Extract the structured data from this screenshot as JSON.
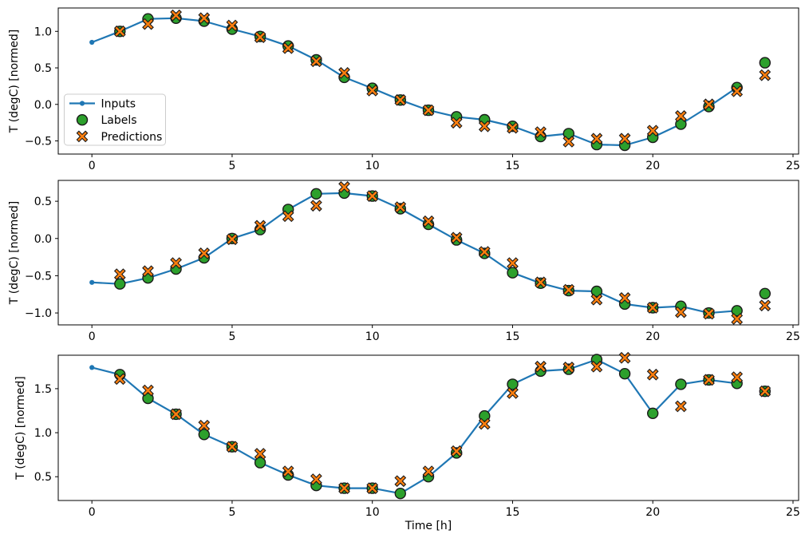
{
  "figure": {
    "xlabel": "Time [h]",
    "ylabel": "T (degC) [normed]",
    "legend": {
      "location": "lower-left of first subplot",
      "items": [
        {
          "label": "Inputs",
          "marker": "line-with-dot",
          "color": "#1f77b4"
        },
        {
          "label": "Labels",
          "marker": "circle",
          "color": "#2ca02c",
          "edge_color": "#1a1a1a"
        },
        {
          "label": "Predictions",
          "marker": "x",
          "color": "#ff7f0e",
          "edge_color": "#1a1a1a"
        }
      ]
    }
  },
  "chart_data": [
    {
      "type": "line",
      "title": "",
      "xlabel": "",
      "ylabel": "T (degC) [normed]",
      "xlim": [
        -1.2,
        25.2
      ],
      "ylim": [
        -0.68,
        1.32
      ],
      "xticks": [
        0,
        5,
        10,
        15,
        20,
        25
      ],
      "xticklabels": [
        "0",
        "5",
        "10",
        "15",
        "20",
        "25"
      ],
      "yticks": [
        -0.5,
        0.0,
        0.5,
        1.0
      ],
      "yticklabels": [
        "−0.5",
        "0.0",
        "0.5",
        "1.0"
      ],
      "grid": false,
      "legend": true,
      "series": [
        {
          "name": "Inputs",
          "style": "line-with-dot",
          "color": "#1f77b4",
          "x": [
            0,
            1,
            2,
            3,
            4,
            5,
            6,
            7,
            8,
            9,
            10,
            11,
            12,
            13,
            14,
            15,
            16,
            17,
            18,
            19,
            20,
            21,
            22,
            23
          ],
          "y": [
            0.85,
            1.0,
            1.17,
            1.18,
            1.14,
            1.03,
            0.93,
            0.8,
            0.61,
            0.37,
            0.22,
            0.06,
            -0.08,
            -0.17,
            -0.21,
            -0.3,
            -0.44,
            -0.4,
            -0.55,
            -0.56,
            -0.45,
            -0.27,
            -0.03,
            0.23
          ]
        },
        {
          "name": "Labels",
          "style": "circle",
          "color": "#2ca02c",
          "x": [
            1,
            2,
            3,
            4,
            5,
            6,
            7,
            8,
            9,
            10,
            11,
            12,
            13,
            14,
            15,
            16,
            17,
            18,
            19,
            20,
            21,
            22,
            23,
            24
          ],
          "y": [
            1.0,
            1.17,
            1.18,
            1.14,
            1.03,
            0.93,
            0.8,
            0.61,
            0.37,
            0.22,
            0.06,
            -0.08,
            -0.17,
            -0.21,
            -0.3,
            -0.44,
            -0.4,
            -0.55,
            -0.56,
            -0.45,
            -0.27,
            -0.03,
            0.23,
            0.57
          ]
        },
        {
          "name": "Predictions",
          "style": "x",
          "color": "#ff7f0e",
          "x": [
            1,
            2,
            3,
            4,
            5,
            6,
            7,
            8,
            9,
            10,
            11,
            12,
            13,
            14,
            15,
            16,
            17,
            18,
            19,
            20,
            21,
            22,
            23,
            24
          ],
          "y": [
            1.0,
            1.1,
            1.22,
            1.18,
            1.08,
            0.92,
            0.77,
            0.59,
            0.43,
            0.19,
            0.06,
            -0.08,
            -0.25,
            -0.3,
            -0.32,
            -0.38,
            -0.51,
            -0.47,
            -0.47,
            -0.36,
            -0.16,
            0.0,
            0.18,
            0.4
          ]
        }
      ]
    },
    {
      "type": "line",
      "title": "",
      "xlabel": "",
      "ylabel": "T (degC) [normed]",
      "xlim": [
        -1.2,
        25.2
      ],
      "ylim": [
        -1.16,
        0.78
      ],
      "xticks": [
        0,
        5,
        10,
        15,
        20,
        25
      ],
      "xticklabels": [
        "0",
        "5",
        "10",
        "15",
        "20",
        "25"
      ],
      "yticks": [
        -1.0,
        -0.5,
        0.0,
        0.5
      ],
      "yticklabels": [
        "−1.0",
        "−0.5",
        "0.0",
        "0.5"
      ],
      "grid": false,
      "legend": false,
      "series": [
        {
          "name": "Inputs",
          "style": "line-with-dot",
          "color": "#1f77b4",
          "x": [
            0,
            1,
            2,
            3,
            4,
            5,
            6,
            7,
            8,
            9,
            10,
            11,
            12,
            13,
            14,
            15,
            16,
            17,
            18,
            19,
            20,
            21,
            22,
            23
          ],
          "y": [
            -0.59,
            -0.61,
            -0.53,
            -0.41,
            -0.26,
            0.0,
            0.12,
            0.39,
            0.6,
            0.61,
            0.57,
            0.4,
            0.19,
            -0.02,
            -0.2,
            -0.46,
            -0.6,
            -0.7,
            -0.71,
            -0.88,
            -0.93,
            -0.91,
            -1.0,
            -0.97
          ]
        },
        {
          "name": "Labels",
          "style": "circle",
          "color": "#2ca02c",
          "x": [
            1,
            2,
            3,
            4,
            5,
            6,
            7,
            8,
            9,
            10,
            11,
            12,
            13,
            14,
            15,
            16,
            17,
            18,
            19,
            20,
            21,
            22,
            23,
            24
          ],
          "y": [
            -0.61,
            -0.53,
            -0.41,
            -0.26,
            0.0,
            0.12,
            0.39,
            0.6,
            0.61,
            0.57,
            0.4,
            0.19,
            -0.02,
            -0.2,
            -0.46,
            -0.6,
            -0.7,
            -0.71,
            -0.88,
            -0.93,
            -0.91,
            -1.0,
            -0.97,
            -0.74
          ]
        },
        {
          "name": "Predictions",
          "style": "x",
          "color": "#ff7f0e",
          "x": [
            1,
            2,
            3,
            4,
            5,
            6,
            7,
            8,
            9,
            10,
            11,
            12,
            13,
            14,
            15,
            16,
            17,
            18,
            19,
            20,
            21,
            22,
            23,
            24
          ],
          "y": [
            -0.48,
            -0.44,
            -0.33,
            -0.2,
            -0.01,
            0.17,
            0.3,
            0.44,
            0.69,
            0.57,
            0.42,
            0.23,
            0.01,
            -0.18,
            -0.33,
            -0.59,
            -0.69,
            -0.82,
            -0.8,
            -0.93,
            -0.99,
            -1.01,
            -1.08,
            -0.9
          ]
        }
      ]
    },
    {
      "type": "line",
      "title": "",
      "xlabel": "Time [h]",
      "ylabel": "T (degC) [normed]",
      "xlim": [
        -1.2,
        25.2
      ],
      "ylim": [
        0.23,
        1.88
      ],
      "xticks": [
        0,
        5,
        10,
        15,
        20,
        25
      ],
      "xticklabels": [
        "0",
        "5",
        "10",
        "15",
        "20",
        "25"
      ],
      "yticks": [
        0.5,
        1.0,
        1.5
      ],
      "yticklabels": [
        "0.5",
        "1.0",
        "1.5"
      ],
      "grid": false,
      "legend": false,
      "series": [
        {
          "name": "Inputs",
          "style": "line-with-dot",
          "color": "#1f77b4",
          "x": [
            0,
            1,
            2,
            3,
            4,
            5,
            6,
            7,
            8,
            9,
            10,
            11,
            12,
            13,
            14,
            15,
            16,
            17,
            18,
            19,
            20,
            21,
            22,
            23
          ],
          "y": [
            1.74,
            1.66,
            1.39,
            1.21,
            0.98,
            0.84,
            0.66,
            0.52,
            0.4,
            0.37,
            0.37,
            0.31,
            0.5,
            0.77,
            1.19,
            1.55,
            1.7,
            1.72,
            1.83,
            1.67,
            1.22,
            1.55,
            1.6,
            1.56
          ]
        },
        {
          "name": "Labels",
          "style": "circle",
          "color": "#2ca02c",
          "x": [
            1,
            2,
            3,
            4,
            5,
            6,
            7,
            8,
            9,
            10,
            11,
            12,
            13,
            14,
            15,
            16,
            17,
            18,
            19,
            20,
            21,
            22,
            23,
            24
          ],
          "y": [
            1.66,
            1.39,
            1.21,
            0.98,
            0.84,
            0.66,
            0.52,
            0.4,
            0.37,
            0.37,
            0.31,
            0.5,
            0.77,
            1.19,
            1.55,
            1.7,
            1.72,
            1.83,
            1.67,
            1.22,
            1.55,
            1.6,
            1.56,
            1.47
          ]
        },
        {
          "name": "Predictions",
          "style": "x",
          "color": "#ff7f0e",
          "x": [
            1,
            2,
            3,
            4,
            5,
            6,
            7,
            8,
            9,
            10,
            11,
            12,
            13,
            14,
            15,
            16,
            17,
            18,
            19,
            20,
            21,
            22,
            23,
            24
          ],
          "y": [
            1.61,
            1.48,
            1.21,
            1.08,
            0.84,
            0.76,
            0.56,
            0.47,
            0.37,
            0.37,
            0.45,
            0.56,
            0.79,
            1.1,
            1.45,
            1.75,
            1.74,
            1.75,
            1.85,
            1.66,
            1.3,
            1.6,
            1.63,
            1.47
          ]
        }
      ]
    }
  ]
}
